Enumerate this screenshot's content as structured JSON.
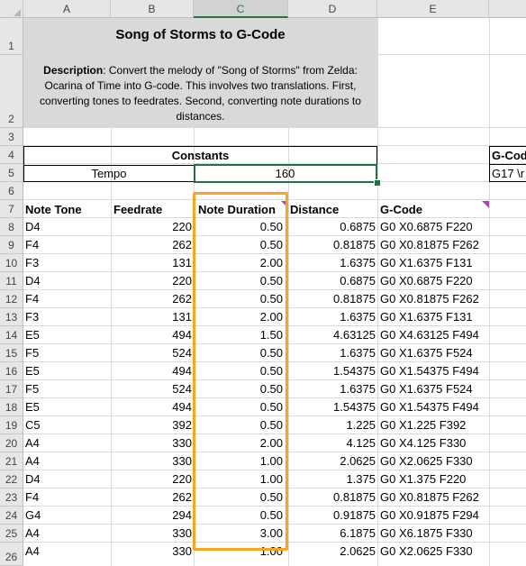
{
  "columns": [
    "A",
    "B",
    "C",
    "D",
    "E"
  ],
  "selected_column": "C",
  "rows": [
    "1",
    "2",
    "3",
    "4",
    "5",
    "6",
    "7",
    "8",
    "9",
    "10",
    "11",
    "12",
    "13",
    "14",
    "15",
    "16",
    "17",
    "18",
    "19",
    "20",
    "21",
    "22",
    "23",
    "24",
    "25",
    "26"
  ],
  "header": {
    "title": "Song of Storms to G-Code",
    "desc_label": "Description",
    "desc_text": ": Convert the melody of \"Song of Storms\" from Zelda: Ocarina of Time into G-code. This involves two translations. First, converting tones to feedrates. Second, converting note durations to distances."
  },
  "constants": {
    "label": "Constants",
    "tempo_label": "Tempo",
    "tempo_value": "160"
  },
  "gcode_box": {
    "label": "G-Cod",
    "value": "G17 \\r"
  },
  "table": {
    "headers": [
      "Note Tone",
      "Feedrate",
      "Note Duration",
      "Distance",
      "G-Code"
    ],
    "rows": [
      [
        "D4",
        "220",
        "0.50",
        "0.6875",
        "G0 X0.6875 F220"
      ],
      [
        "F4",
        "262",
        "0.50",
        "0.81875",
        "G0 X0.81875 F262"
      ],
      [
        "F3",
        "131",
        "2.00",
        "1.6375",
        "G0 X1.6375 F131"
      ],
      [
        "D4",
        "220",
        "0.50",
        "0.6875",
        "G0 X0.6875 F220"
      ],
      [
        "F4",
        "262",
        "0.50",
        "0.81875",
        "G0 X0.81875 F262"
      ],
      [
        "F3",
        "131",
        "2.00",
        "1.6375",
        "G0 X1.6375 F131"
      ],
      [
        "E5",
        "494",
        "1.50",
        "4.63125",
        "G0 X4.63125 F494"
      ],
      [
        "F5",
        "524",
        "0.50",
        "1.6375",
        "G0 X1.6375 F524"
      ],
      [
        "E5",
        "494",
        "0.50",
        "1.54375",
        "G0 X1.54375 F494"
      ],
      [
        "F5",
        "524",
        "0.50",
        "1.6375",
        "G0 X1.6375 F524"
      ],
      [
        "E5",
        "494",
        "0.50",
        "1.54375",
        "G0 X1.54375 F494"
      ],
      [
        "C5",
        "392",
        "0.50",
        "1.225",
        "G0 X1.225 F392"
      ],
      [
        "A4",
        "330",
        "2.00",
        "4.125",
        "G0 X4.125 F330"
      ],
      [
        "A4",
        "330",
        "1.00",
        "2.0625",
        "G0 X2.0625 F330"
      ],
      [
        "D4",
        "220",
        "1.00",
        "1.375",
        "G0 X1.375 F220"
      ],
      [
        "F4",
        "262",
        "0.50",
        "0.81875",
        "G0 X0.81875 F262"
      ],
      [
        "G4",
        "294",
        "0.50",
        "0.91875",
        "G0 X0.91875 F294"
      ],
      [
        "A4",
        "330",
        "3.00",
        "6.1875",
        "G0 X6.1875 F330"
      ],
      [
        "A4",
        "330",
        "1.00",
        "2.0625",
        "G0 X2.0625 F330"
      ]
    ]
  },
  "colors": {
    "highlight": "#f5a623",
    "selection": "#217346",
    "comment_marker": "#a349a4",
    "header_bg": "#d9d9d9"
  }
}
